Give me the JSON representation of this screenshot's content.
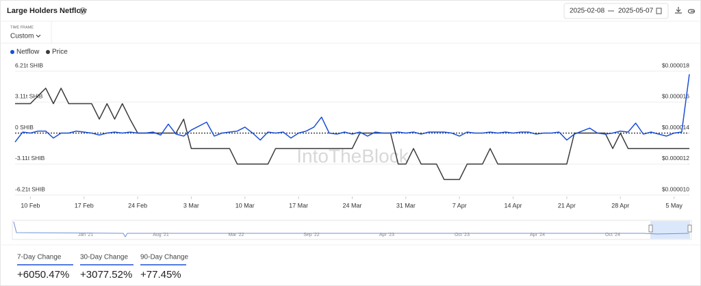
{
  "chart_data": {
    "type": "line",
    "title": "Large Holders Netflow",
    "date_from": "2025-02-08",
    "date_to": "2025-05-07",
    "timeframe_label": "TIME FRAME",
    "timeframe": "Custom",
    "watermark": "IntoTheBlock",
    "categories": [
      null,
      null,
      "10 Feb",
      null,
      null,
      null,
      null,
      null,
      null,
      "17 Feb",
      null,
      null,
      null,
      null,
      null,
      null,
      "24 Feb",
      null,
      null,
      null,
      null,
      null,
      null,
      "3 Mar",
      null,
      null,
      null,
      null,
      null,
      null,
      "10 Mar",
      null,
      null,
      null,
      null,
      null,
      null,
      "17 Mar",
      null,
      null,
      null,
      null,
      null,
      null,
      "24 Mar",
      null,
      null,
      null,
      null,
      null,
      null,
      "31 Mar",
      null,
      null,
      null,
      null,
      null,
      null,
      "7 Apr",
      null,
      null,
      null,
      null,
      null,
      null,
      "14 Apr",
      null,
      null,
      null,
      null,
      null,
      null,
      "21 Apr",
      null,
      null,
      null,
      null,
      null,
      null,
      "28 Apr",
      null,
      null,
      null,
      null,
      null,
      null,
      "5 May",
      null,
      null
    ],
    "series": [
      {
        "name": "Netflow",
        "color": "#1a4fd6",
        "axis": "y",
        "values": [
          -0.9,
          0.1,
          0.0,
          0.2,
          0.2,
          -0.5,
          0.0,
          0.0,
          0.2,
          0.1,
          0.0,
          -0.2,
          0.0,
          0.1,
          0.0,
          0.1,
          0.0,
          0.0,
          0.1,
          -0.2,
          0.9,
          -0.1,
          -0.3,
          0.3,
          0.7,
          1.1,
          -0.3,
          0.0,
          0.1,
          0.2,
          0.6,
          0.0,
          -0.7,
          0.1,
          0.0,
          0.1,
          -0.5,
          0.0,
          0.2,
          0.6,
          1.6,
          0.0,
          -0.1,
          0.1,
          -0.1,
          0.1,
          -0.3,
          0.1,
          0.0,
          0.0,
          0.1,
          0.0,
          0.1,
          -0.1,
          0.1,
          0.1,
          0.1,
          0.0,
          -0.3,
          0.1,
          0.0,
          0.0,
          0.1,
          0.0,
          0.1,
          0.0,
          0.1,
          0.1,
          -0.1,
          0.0,
          0.0,
          0.1,
          -0.7,
          -0.1,
          0.2,
          0.5,
          0.0,
          -0.1,
          0.0,
          0.2,
          0.1,
          1.0,
          -0.1,
          0.1,
          -0.1,
          -0.3,
          0.0,
          0.1,
          5.9
        ]
      },
      {
        "name": "Price",
        "color": "#3a3a3a",
        "axis": "y2",
        "values": [
          1.59e-05,
          1.59e-05,
          1.59e-05,
          1.64e-05,
          1.69e-05,
          1.59e-05,
          1.69e-05,
          1.59e-05,
          1.59e-05,
          1.59e-05,
          1.59e-05,
          1.49e-05,
          1.59e-05,
          1.49e-05,
          1.59e-05,
          1.49e-05,
          1.4e-05,
          1.4e-05,
          1.4e-05,
          1.4e-05,
          1.4e-05,
          1.4e-05,
          1.49e-05,
          1.3e-05,
          1.3e-05,
          1.3e-05,
          1.3e-05,
          1.3e-05,
          1.3e-05,
          1.2e-05,
          1.2e-05,
          1.2e-05,
          1.2e-05,
          1.2e-05,
          1.3e-05,
          1.3e-05,
          1.3e-05,
          1.3e-05,
          1.3e-05,
          1.3e-05,
          1.3e-05,
          1.3e-05,
          1.3e-05,
          1.3e-05,
          1.3e-05,
          1.4e-05,
          1.4e-05,
          1.4e-05,
          1.4e-05,
          1.4e-05,
          1.2e-05,
          1.2e-05,
          1.3e-05,
          1.2e-05,
          1.2e-05,
          1.2e-05,
          1.1e-05,
          1.1e-05,
          1.1e-05,
          1.2e-05,
          1.2e-05,
          1.2e-05,
          1.3e-05,
          1.2e-05,
          1.2e-05,
          1.2e-05,
          1.2e-05,
          1.2e-05,
          1.2e-05,
          1.2e-05,
          1.2e-05,
          1.2e-05,
          1.2e-05,
          1.4e-05,
          1.4e-05,
          1.4e-05,
          1.4e-05,
          1.4e-05,
          1.3e-05,
          1.4e-05,
          1.3e-05,
          1.3e-05,
          1.3e-05,
          1.3e-05,
          1.3e-05,
          1.3e-05,
          1.3e-05,
          1.3e-05,
          1.3e-05
        ]
      }
    ],
    "ylim": [
      -6.21,
      6.21
    ],
    "yticks": [
      {
        "value": 6.21,
        "label": "6.21t SHIB"
      },
      {
        "value": 3.11,
        "label": "3.11t SHIB"
      },
      {
        "value": 0,
        "label": "0 SHIB"
      },
      {
        "value": -3.11,
        "label": "-3.11t SHIB"
      },
      {
        "value": -6.21,
        "label": "-6.21t SHIB"
      }
    ],
    "y2lim": [
      1e-05,
      1.8e-05
    ],
    "y2ticks": [
      {
        "value": 1.8e-05,
        "label": "$0.000018"
      },
      {
        "value": 1.6e-05,
        "label": "$0.000016"
      },
      {
        "value": 1.4e-05,
        "label": "$0.000014"
      },
      {
        "value": 1.2e-05,
        "label": "$0.000012"
      },
      {
        "value": 1e-05,
        "label": "$0.000010"
      }
    ],
    "grid": true,
    "legend": "top-left",
    "navigator_labels": [
      "Jan '21",
      "Aug '21",
      "Mar '22",
      "Sep '22",
      "Apr '23",
      "Oct '23",
      "Apr '24",
      "Oct '24"
    ],
    "stats": [
      {
        "label": "7-Day Change",
        "value": "+6050.47%"
      },
      {
        "label": "30-Day Change",
        "value": "+3077.52%"
      },
      {
        "label": "90-Day Change",
        "value": "+77.45%"
      }
    ]
  }
}
